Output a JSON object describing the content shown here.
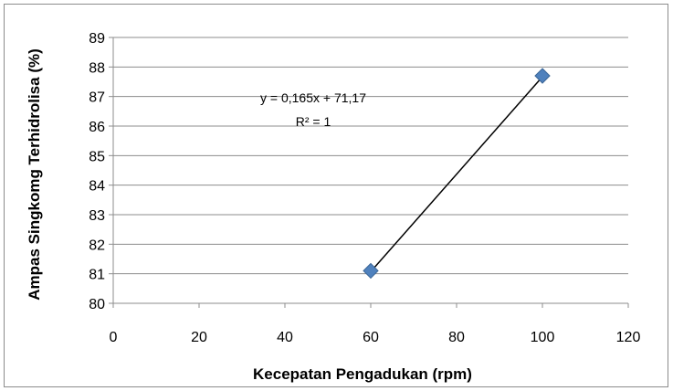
{
  "chart_data": {
    "type": "scatter",
    "title": "",
    "xlabel": "Kecepatan Pengadukan (rpm)",
    "ylabel": "Ampas Singkomg Terhidrolisa (%)",
    "xlim": [
      0,
      120
    ],
    "ylim": [
      80,
      89
    ],
    "x_ticks": [
      "0",
      "20",
      "40",
      "60",
      "80",
      "100",
      "120"
    ],
    "y_ticks": [
      "80",
      "81",
      "82",
      "83",
      "84",
      "85",
      "86",
      "87",
      "88",
      "89"
    ],
    "grid": "horizontal",
    "legend": "none",
    "series": [
      {
        "points": [
          {
            "x": 60,
            "y": 81.1
          },
          {
            "x": 100,
            "y": 87.7
          }
        ],
        "marker": "diamond",
        "color": "#4f81bd"
      }
    ],
    "trendline": {
      "type": "linear",
      "slope": 0.165,
      "intercept": 71.17,
      "x_range": [
        60,
        100
      ],
      "color": "#000000",
      "equation_text": "y = 0,165x + 71,17",
      "r2_text": "R² = 1"
    }
  }
}
